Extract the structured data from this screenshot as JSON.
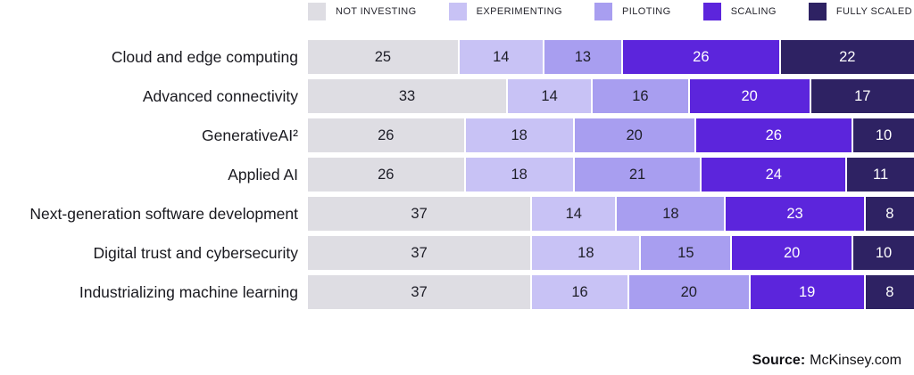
{
  "chart_data": {
    "type": "bar",
    "stacked": true,
    "orientation": "horizontal",
    "title": "",
    "xlabel": "",
    "ylabel": "",
    "xlim": [
      0,
      100
    ],
    "grid": false,
    "legend_position": "top",
    "categories": [
      "Cloud and edge computing",
      "Advanced connectivity",
      "GenerativeAI²",
      "Applied AI",
      "Next-generation software development",
      "Digital trust and cybersecurity",
      "Industrializing machine learning"
    ],
    "series": [
      {
        "name": "NOT INVESTING",
        "color": "#dedde3",
        "text_color": "#1e1e28",
        "values": [
          25,
          33,
          26,
          26,
          37,
          37,
          37
        ]
      },
      {
        "name": "EXPERIMENTING",
        "color": "#c8c2f5",
        "text_color": "#1e1e28",
        "values": [
          14,
          14,
          18,
          18,
          14,
          18,
          16
        ]
      },
      {
        "name": "PILOTING",
        "color": "#a89ef0",
        "text_color": "#1e1e28",
        "values": [
          13,
          16,
          20,
          21,
          18,
          15,
          20
        ]
      },
      {
        "name": "SCALING",
        "color": "#5c25dc",
        "text_color": "#ffffff",
        "values": [
          26,
          20,
          26,
          24,
          23,
          20,
          19
        ]
      },
      {
        "name": "FULLY SCALED",
        "color": "#2e2263",
        "text_color": "#ffffff",
        "values": [
          22,
          17,
          10,
          11,
          8,
          10,
          8
        ]
      }
    ],
    "source": {
      "label": "Source:",
      "value": "McKinsey.com"
    }
  }
}
